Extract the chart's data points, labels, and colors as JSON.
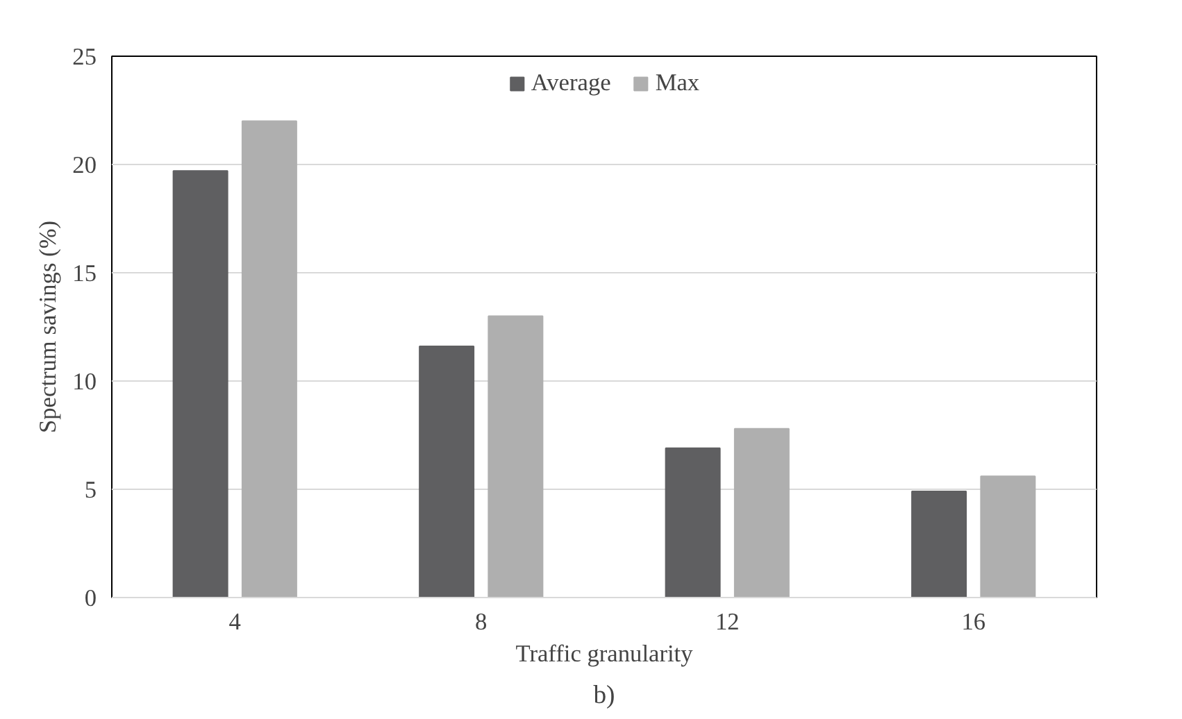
{
  "chart_data": {
    "type": "bar",
    "xlabel": "Traffic granularity",
    "ylabel": "Spectrum savings (%)",
    "categories": [
      "4",
      "8",
      "12",
      "16"
    ],
    "series": [
      {
        "name": "Average",
        "color": "#5f5f61",
        "values": [
          19.7,
          11.6,
          6.9,
          4.9
        ]
      },
      {
        "name": "Max",
        "color": "#afafaf",
        "values": [
          22.0,
          13.0,
          7.8,
          5.6
        ]
      }
    ],
    "ylim": [
      0,
      25
    ],
    "yticks": [
      0,
      5,
      10,
      15,
      20,
      25
    ],
    "grid": "y",
    "legend": "top",
    "annotations": [
      "b)"
    ]
  }
}
